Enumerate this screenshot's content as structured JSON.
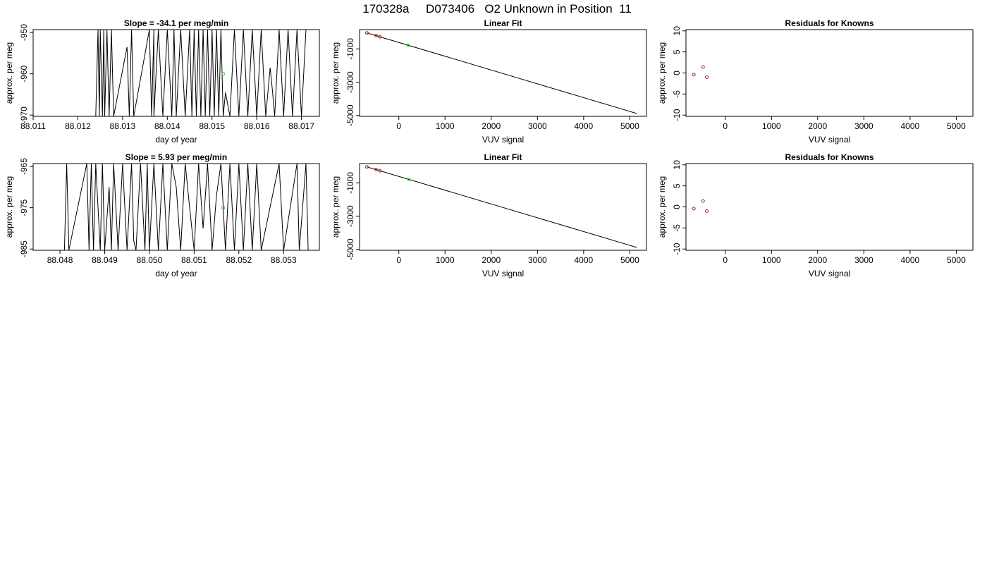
{
  "page_title": "170328a     D073406   O2 Unknown in Position  11",
  "chart_data": [
    {
      "type": "line",
      "title": "Slope =  -34.1  per meg/min",
      "xlabel": "day of year",
      "ylabel": "approx. per meg",
      "xlim": [
        88.011,
        88.0174
      ],
      "ylim": [
        -970.3,
        -949.3
      ],
      "xticks": [
        88.011,
        88.012,
        88.013,
        88.014,
        88.015,
        88.016,
        88.017
      ],
      "xtick_labels": [
        "88.011",
        "88.012",
        "88.013",
        "88.014",
        "88.015",
        "88.016",
        "88.017"
      ],
      "yticks": [
        -950,
        -960,
        -970
      ],
      "ytick_labels": [
        "-950",
        "-960",
        "-970"
      ],
      "y_tick_rotation": "vertical",
      "grid": false,
      "series": [
        {
          "color": "#000000",
          "x": [
            88.0124,
            88.01245,
            88.01248,
            88.0125,
            88.01255,
            88.01258,
            88.0126,
            88.01265,
            88.0127,
            88.01275,
            88.0128,
            88.0131,
            88.01315,
            88.0132,
            88.01325,
            88.0136,
            88.01365,
            88.0137,
            88.0137,
            88.0138,
            88.0139,
            88.014,
            88.0141,
            88.01415,
            88.0142,
            88.0143,
            88.0144,
            88.0145,
            88.01455,
            88.0146,
            88.01465,
            88.0147,
            88.01475,
            88.0148,
            88.01485,
            88.0149,
            88.01495,
            88.015,
            88.01505,
            88.0151,
            88.01515,
            88.0152,
            88.01525,
            88.0153,
            88.0154,
            88.0155,
            88.0156,
            88.0157,
            88.0158,
            88.0159,
            88.016,
            88.0161,
            88.0162,
            88.0163,
            88.01635,
            88.0164,
            88.0165,
            88.0166,
            88.0167,
            88.0168,
            88.0169,
            88.017,
            88.0171
          ],
          "y": [
            -970.3,
            -949.3,
            -970.3,
            -949.3,
            -970.3,
            -949.3,
            -970.3,
            -949.3,
            -970.3,
            -949.3,
            -970.3,
            -953.5,
            -970.3,
            -949.3,
            -970.3,
            -949.3,
            -970.3,
            -949.3,
            -970.3,
            -949.3,
            -970.3,
            -949.3,
            -970.3,
            -949.3,
            -970.3,
            -949.3,
            -970.3,
            -949.3,
            -970.3,
            -949.3,
            -970.3,
            -949.3,
            -970.3,
            -949.3,
            -970.3,
            -949.3,
            -970.3,
            -949.3,
            -970.3,
            -949.3,
            -970.3,
            -949.3,
            -970.3,
            -964.5,
            -970.3,
            -949.3,
            -970.3,
            -949.3,
            -970.3,
            -949.3,
            -970.3,
            -949.3,
            -970.3,
            -958.5,
            -964,
            -970.3,
            -949.3,
            -970.3,
            -949.3,
            -970.3,
            -949.3,
            -970.3,
            -949.3
          ]
        }
      ],
      "highlight_points": [
        {
          "x": 88.01525,
          "y": -960,
          "color": "#33cc33"
        }
      ]
    },
    {
      "type": "scatter",
      "title": "Linear Fit",
      "xlabel": "VUV signal",
      "ylabel": "approx. per meg",
      "xlim": [
        -850,
        5360
      ],
      "ylim": [
        -5050,
        160
      ],
      "xticks": [
        0,
        1000,
        2000,
        3000,
        4000,
        5000
      ],
      "xtick_labels": [
        "0",
        "1000",
        "2000",
        "3000",
        "4000",
        "5000"
      ],
      "yticks": [
        -1000,
        -3000,
        -5000
      ],
      "ytick_labels": [
        "-1000",
        "-3000",
        "-5000"
      ],
      "y_tick_rotation": "vertical",
      "grid": false,
      "fit_line": {
        "x": [
          -690,
          5150
        ],
        "y": [
          -40,
          -4880
        ],
        "color": "#000000"
      },
      "points": [
        {
          "x": -690,
          "y": -40,
          "color": "#b22222"
        },
        {
          "x": -490,
          "y": -200,
          "color": "#b22222"
        },
        {
          "x": -410,
          "y": -270,
          "color": "#b22222"
        }
      ],
      "highlight_points": [
        {
          "x": 200,
          "y": -780,
          "color": "#33cc33"
        }
      ]
    },
    {
      "type": "scatter",
      "title": "Residuals for Knowns",
      "xlabel": "VUV signal",
      "ylabel": "approx. per meg",
      "xlim": [
        -850,
        5360
      ],
      "ylim": [
        -10.3,
        10.3
      ],
      "xticks": [
        0,
        1000,
        2000,
        3000,
        4000,
        5000
      ],
      "xtick_labels": [
        "0",
        "1000",
        "2000",
        "3000",
        "4000",
        "5000"
      ],
      "yticks": [
        10,
        5,
        0,
        -5,
        -10
      ],
      "ytick_labels": [
        "10",
        "5",
        "0",
        "-5",
        "-10"
      ],
      "y_tick_rotation": "vertical",
      "grid": false,
      "points": [
        {
          "x": -680,
          "y": -0.4,
          "color": "#b22222"
        },
        {
          "x": -480,
          "y": 1.4,
          "color": "#b22222"
        },
        {
          "x": -400,
          "y": -1.0,
          "color": "#b22222"
        }
      ]
    },
    {
      "type": "line",
      "title": "Slope =  5.93  per meg/min",
      "xlabel": "day of year",
      "ylabel": "approx. per meg",
      "xlim": [
        88.0474,
        88.0538
      ],
      "ylim": [
        -985.3,
        -964.3
      ],
      "xticks": [
        88.048,
        88.049,
        88.05,
        88.051,
        88.052,
        88.053
      ],
      "xtick_labels": [
        "88.048",
        "88.049",
        "88.050",
        "88.051",
        "88.052",
        "88.053"
      ],
      "yticks": [
        -965,
        -975,
        -985
      ],
      "ytick_labels": [
        "-965",
        "-975",
        "-985"
      ],
      "y_tick_rotation": "vertical",
      "grid": false,
      "series": [
        {
          "color": "#000000",
          "x": [
            88.0481,
            88.04815,
            88.0482,
            88.0486,
            88.04865,
            88.0487,
            88.04875,
            88.0488,
            88.0489,
            88.04895,
            88.049,
            88.0491,
            88.04915,
            88.0492,
            88.0493,
            88.0494,
            88.0495,
            88.0496,
            88.04965,
            88.0497,
            88.0498,
            88.0499,
            88.04995,
            88.05,
            88.0501,
            88.0502,
            88.0503,
            88.0504,
            88.0505,
            88.0506,
            88.0507,
            88.0508,
            88.0509,
            88.051,
            88.0511,
            88.0512,
            88.0513,
            88.0514,
            88.0515,
            88.0516,
            88.0517,
            88.0518,
            88.0519,
            88.052,
            88.0521,
            88.0522,
            88.0523,
            88.0524,
            88.0525,
            88.0529,
            88.053,
            88.0533,
            88.05335,
            88.0535,
            88.05355
          ],
          "y": [
            -985.3,
            -964.3,
            -985.3,
            -964.3,
            -985.3,
            -964.3,
            -985.3,
            -964.3,
            -985.3,
            -964.3,
            -985.3,
            -970.0,
            -985.3,
            -964.3,
            -985.3,
            -964.3,
            -985.3,
            -964.3,
            -983.0,
            -985.3,
            -964.3,
            -985.3,
            -964.3,
            -985.3,
            -964.3,
            -985.3,
            -964.3,
            -985.3,
            -964.3,
            -970.0,
            -985.3,
            -964.3,
            -975.0,
            -985.3,
            -964.3,
            -980.0,
            -964.3,
            -985.3,
            -972.0,
            -964.3,
            -985.3,
            -964.3,
            -985.3,
            -964.3,
            -985.3,
            -964.3,
            -985.3,
            -964.3,
            -985.3,
            -964.3,
            -985.3,
            -964.3,
            -985.3,
            -964.3,
            -985.3
          ]
        }
      ],
      "highlight_points": [
        {
          "x": 88.05165,
          "y": -975,
          "color": "#33cc33"
        }
      ]
    },
    {
      "type": "scatter",
      "title": "Linear Fit",
      "xlabel": "VUV signal",
      "ylabel": "approx. per meg",
      "xlim": [
        -850,
        5360
      ],
      "ylim": [
        -5050,
        160
      ],
      "xticks": [
        0,
        1000,
        2000,
        3000,
        4000,
        5000
      ],
      "xtick_labels": [
        "0",
        "1000",
        "2000",
        "3000",
        "4000",
        "5000"
      ],
      "yticks": [
        -1000,
        -3000,
        -5000
      ],
      "ytick_labels": [
        "-1000",
        "-3000",
        "-5000"
      ],
      "y_tick_rotation": "vertical",
      "grid": false,
      "fit_line": {
        "x": [
          -690,
          5150
        ],
        "y": [
          -40,
          -4880
        ],
        "color": "#000000"
      },
      "points": [
        {
          "x": -690,
          "y": -40,
          "color": "#b22222"
        },
        {
          "x": -490,
          "y": -200,
          "color": "#b22222"
        },
        {
          "x": -410,
          "y": -270,
          "color": "#b22222"
        }
      ],
      "highlight_points": [
        {
          "x": 220,
          "y": -790,
          "color": "#33cc33"
        }
      ]
    },
    {
      "type": "scatter",
      "title": "Residuals for Knowns",
      "xlabel": "VUV signal",
      "ylabel": "approx. per meg",
      "xlim": [
        -850,
        5360
      ],
      "ylim": [
        -10.3,
        10.3
      ],
      "xticks": [
        0,
        1000,
        2000,
        3000,
        4000,
        5000
      ],
      "xtick_labels": [
        "0",
        "1000",
        "2000",
        "3000",
        "4000",
        "5000"
      ],
      "yticks": [
        10,
        5,
        0,
        -5,
        -10
      ],
      "ytick_labels": [
        "10",
        "5",
        "0",
        "-5",
        "-10"
      ],
      "y_tick_rotation": "vertical",
      "grid": false,
      "points": [
        {
          "x": -680,
          "y": -0.4,
          "color": "#b22222"
        },
        {
          "x": -480,
          "y": 1.4,
          "color": "#b22222"
        },
        {
          "x": -400,
          "y": -1.0,
          "color": "#b22222"
        }
      ]
    }
  ]
}
